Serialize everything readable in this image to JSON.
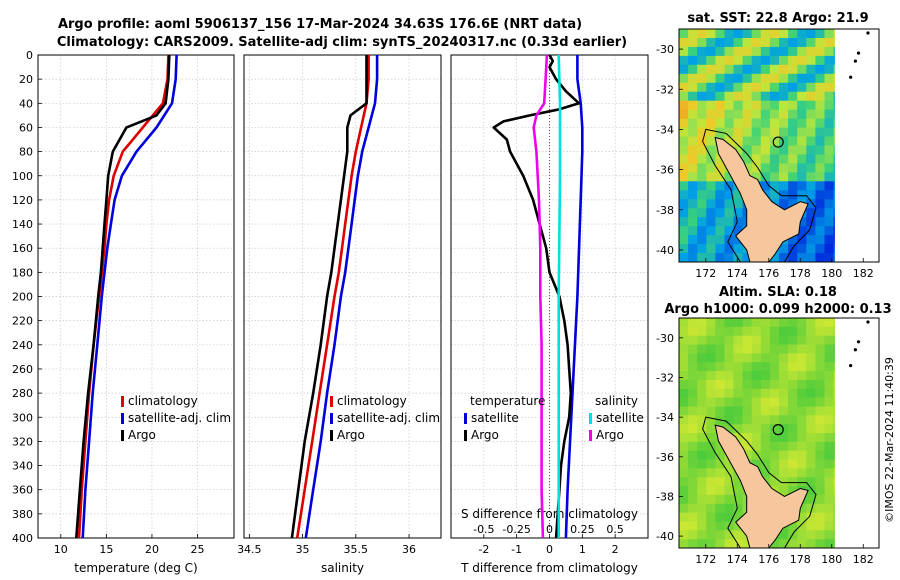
{
  "title": {
    "line1": "Argo profile: aoml 5906137_156 17-Mar-2024 34.63S 176.6E (NRT data)",
    "line2": "Climatology: CARS2009. Satellite-adj clim: synTS_20240317.nc (0.33d earlier)"
  },
  "credit": "©IMOS 22-Mar-2024 11:40:39",
  "colors": {
    "climatology": "#dd0000",
    "satellite": "#0000dd",
    "argo": "#000000",
    "salinity_sat": "#00e0e0",
    "salinity_argo": "#ee00ee"
  },
  "chart_data": [
    {
      "type": "line",
      "xlabel": "temperature (deg C)",
      "ylabel": "depth",
      "xlim": [
        7.5,
        29
      ],
      "ylim": [
        400,
        0
      ],
      "xticks": [
        10,
        15,
        20,
        25
      ],
      "yticks": [
        0,
        20,
        40,
        60,
        80,
        100,
        120,
        140,
        160,
        180,
        200,
        220,
        240,
        260,
        280,
        300,
        320,
        340,
        360,
        380,
        400
      ],
      "grid": true,
      "legend": [
        "climatology",
        "satellite-adj. clim",
        "Argo"
      ],
      "series": [
        {
          "name": "climatology",
          "color": "#dd0000",
          "depth": [
            0,
            20,
            40,
            60,
            80,
            100,
            120,
            140,
            160,
            180,
            200,
            240,
            280,
            320,
            360,
            400
          ],
          "values": [
            21.8,
            21.7,
            21.2,
            19.0,
            16.8,
            15.8,
            15.3,
            15.0,
            14.8,
            14.5,
            14.2,
            13.6,
            13.1,
            12.7,
            12.3,
            12.0
          ]
        },
        {
          "name": "satellite-adj. clim",
          "color": "#0000dd",
          "depth": [
            0,
            20,
            40,
            60,
            80,
            100,
            120,
            140,
            160,
            180,
            200,
            240,
            280,
            320,
            360,
            400
          ],
          "values": [
            22.7,
            22.6,
            22.2,
            20.5,
            18.3,
            16.7,
            15.9,
            15.5,
            15.1,
            14.8,
            14.5,
            14.0,
            13.5,
            13.1,
            12.7,
            12.4
          ]
        },
        {
          "name": "Argo",
          "color": "#000000",
          "depth": [
            0,
            20,
            40,
            50,
            60,
            80,
            100,
            120,
            140,
            160,
            180,
            200,
            240,
            280,
            320,
            360,
            400
          ],
          "values": [
            21.9,
            21.8,
            21.5,
            20.5,
            17.2,
            15.7,
            15.2,
            15.0,
            14.8,
            14.6,
            14.4,
            14.1,
            13.6,
            13.0,
            12.5,
            12.1,
            11.7
          ]
        }
      ]
    },
    {
      "type": "line",
      "xlabel": "salinity",
      "ylabel": "depth",
      "xlim": [
        34.45,
        36.3
      ],
      "ylim": [
        400,
        0
      ],
      "xticks": [
        34.5,
        35,
        35.5,
        36
      ],
      "ytick_labels": false,
      "grid": true,
      "legend": [
        "climatology",
        "satellite-adj. clim",
        "Argo"
      ],
      "series": [
        {
          "name": "climatology",
          "color": "#dd0000",
          "depth": [
            0,
            20,
            40,
            60,
            80,
            100,
            120,
            140,
            160,
            180,
            200,
            240,
            280,
            320,
            360,
            400
          ],
          "values": [
            35.62,
            35.62,
            35.6,
            35.55,
            35.5,
            35.46,
            35.43,
            35.4,
            35.37,
            35.34,
            35.3,
            35.23,
            35.16,
            35.09,
            35.02,
            34.95
          ]
        },
        {
          "name": "satellite-adj. clim",
          "color": "#0000dd",
          "depth": [
            0,
            20,
            40,
            60,
            80,
            100,
            120,
            140,
            160,
            180,
            200,
            240,
            280,
            320,
            360,
            400
          ],
          "values": [
            35.7,
            35.7,
            35.68,
            35.62,
            35.56,
            35.52,
            35.49,
            35.46,
            35.43,
            35.4,
            35.36,
            35.3,
            35.23,
            35.17,
            35.1,
            35.03
          ]
        },
        {
          "name": "Argo",
          "color": "#000000",
          "depth": [
            0,
            20,
            40,
            50,
            60,
            80,
            100,
            120,
            140,
            160,
            180,
            200,
            240,
            280,
            320,
            360,
            400
          ],
          "values": [
            35.6,
            35.6,
            35.6,
            35.45,
            35.42,
            35.42,
            35.39,
            35.36,
            35.33,
            35.3,
            35.27,
            35.23,
            35.17,
            35.1,
            35.02,
            34.96,
            34.9
          ]
        }
      ]
    },
    {
      "type": "line",
      "xlabel": "T difference from climatology",
      "x2label": "S difference from climatology",
      "ylabel": "depth",
      "xlim": [
        -3,
        3
      ],
      "ylim": [
        400,
        0
      ],
      "xticks": [
        -2,
        -1,
        0,
        1,
        2
      ],
      "x2ticks": [
        -0.5,
        -0.25,
        0,
        0.25,
        0.5
      ],
      "x2tick_labels": [
        "-0.5",
        "-0.25",
        "0",
        "0.25",
        "0.5"
      ],
      "x2lim": [
        -0.75,
        0.75
      ],
      "ytick_labels": false,
      "grid": true,
      "legend_temperature": {
        "title": "temperature",
        "items": [
          "satellite",
          "Argo"
        ]
      },
      "legend_salinity": {
        "title": "salinity",
        "items": [
          "satellite",
          "Argo"
        ]
      },
      "series": [
        {
          "name": "temperature satellite",
          "axis": "T",
          "color": "#0000dd",
          "depth": [
            0,
            20,
            40,
            60,
            80,
            120,
            200,
            280,
            360,
            400
          ],
          "values": [
            0.85,
            0.85,
            0.95,
            1.0,
            1.0,
            0.95,
            0.85,
            0.7,
            0.55,
            0.5
          ]
        },
        {
          "name": "temperature Argo",
          "axis": "T",
          "color": "#000000",
          "depth": [
            0,
            5,
            10,
            20,
            30,
            40,
            45,
            50,
            55,
            60,
            70,
            80,
            100,
            120,
            140,
            160,
            180,
            200,
            220,
            240,
            260,
            280,
            300,
            320,
            340,
            360,
            380,
            400
          ],
          "values": [
            0.0,
            0.1,
            0.0,
            0.2,
            0.5,
            0.9,
            0.3,
            -0.6,
            -1.4,
            -1.7,
            -1.3,
            -1.2,
            -0.8,
            -0.5,
            -0.3,
            -0.1,
            0.0,
            0.3,
            0.45,
            0.55,
            0.6,
            0.65,
            0.6,
            0.45,
            0.35,
            0.3,
            0.25,
            0.2
          ]
        },
        {
          "name": "salinity satellite",
          "axis": "S",
          "color": "#00e0e0",
          "depth": [
            0,
            40,
            100,
            200,
            300,
            400
          ],
          "values": [
            0.07,
            0.08,
            0.08,
            0.07,
            0.07,
            0.07
          ]
        },
        {
          "name": "salinity Argo",
          "axis": "S",
          "color": "#ee00ee",
          "depth": [
            0,
            20,
            40,
            50,
            60,
            80,
            120,
            160,
            200,
            240,
            280,
            320,
            360,
            400
          ],
          "values": [
            -0.02,
            -0.03,
            -0.04,
            -0.1,
            -0.12,
            -0.1,
            -0.08,
            -0.07,
            -0.07,
            -0.06,
            -0.06,
            -0.06,
            -0.06,
            -0.05
          ]
        }
      ]
    }
  ],
  "maps": {
    "top": {
      "title": "sat. SST: 22.8 Argo: 21.9",
      "xticks": [
        "172",
        "174",
        "176",
        "178",
        "180",
        "182"
      ],
      "yticks": [
        "-30",
        "-32",
        "-34",
        "-36",
        "-38",
        "-40"
      ]
    },
    "bottom": {
      "title1": "Altim. SLA: 0.18",
      "title2": "Argo h1000: 0.099 h2000: 0.13",
      "xticks": [
        "172",
        "174",
        "176",
        "178",
        "180",
        "182"
      ],
      "yticks": [
        "-30",
        "-32",
        "-34",
        "-36",
        "-38",
        "-40"
      ]
    }
  }
}
